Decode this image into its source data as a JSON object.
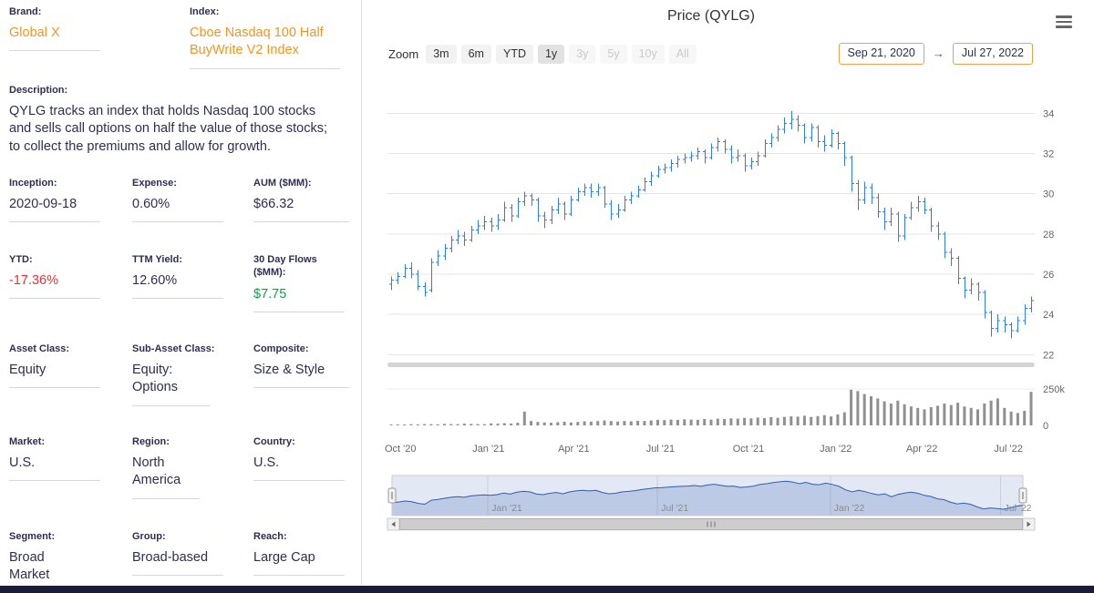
{
  "colors": {
    "accent-orange": "#f7941d",
    "negative-red": "#f3302f",
    "positive-green": "#0aa14e",
    "navy-text": "#2e2e52",
    "bar-blue": "#2f7ed8",
    "volume-gray": "#909090",
    "nav-line-blue": "#335cad",
    "footer-navy": "#1b1b3a"
  },
  "profile": {
    "fields": {
      "brand": {
        "label": "Brand:",
        "value": "Global X"
      },
      "index": {
        "label": "Index:",
        "value": "Cboe Nasdaq 100 Half BuyWrite V2 Index"
      },
      "description": {
        "label": "Description:",
        "value": "QYLG tracks an index that holds Nasdaq 100 stocks and sells call options on half the value of those stocks; to collect the premiums and allow for growth."
      },
      "inception": {
        "label": "Inception:",
        "value": "2020-09-18"
      },
      "expense": {
        "label": "Expense:",
        "value": "0.60%"
      },
      "aum": {
        "label": "AUM ($MM):",
        "value": "$66.32"
      },
      "ytd": {
        "label": "YTD:",
        "value": "-17.36%"
      },
      "ttm_yield": {
        "label": "TTM Yield:",
        "value": "12.60%"
      },
      "flows30d": {
        "label": "30 Day Flows ($MM):",
        "value": "$7.75"
      },
      "asset_class": {
        "label": "Asset Class:",
        "value": "Equity"
      },
      "sub_asset_class": {
        "label": "Sub-Asset Class:",
        "value": "Equity: Options"
      },
      "composite": {
        "label": "Composite:",
        "value": "Size & Style"
      },
      "market": {
        "label": "Market:",
        "value": "U.S."
      },
      "region": {
        "label": "Region:",
        "value": "North America"
      },
      "country": {
        "label": "Country:",
        "value": "U.S."
      },
      "segment": {
        "label": "Segment:",
        "value": "Broad Market"
      },
      "group": {
        "label": "Group:",
        "value": "Broad-based"
      },
      "reach": {
        "label": "Reach:",
        "value": "Large Cap"
      }
    }
  },
  "chart": {
    "title": "Price (QYLG)",
    "zoom_label": "Zoom",
    "zoom_buttons": [
      {
        "label": "3m",
        "state": "enabled"
      },
      {
        "label": "6m",
        "state": "enabled"
      },
      {
        "label": "YTD",
        "state": "enabled"
      },
      {
        "label": "1y",
        "state": "selected"
      },
      {
        "label": "3y",
        "state": "disabled"
      },
      {
        "label": "5y",
        "state": "disabled"
      },
      {
        "label": "10y",
        "state": "disabled"
      },
      {
        "label": "All",
        "state": "disabled"
      }
    ],
    "range": {
      "from": "Sep 21, 2020",
      "arrow": "→",
      "to": "Jul 27, 2022"
    }
  },
  "chart_data": {
    "type": "candlestick",
    "title": "Price (QYLG)",
    "interval": "weekly",
    "start_date": "2020-09-21",
    "end_date": "2022-07-27",
    "price_axis": {
      "min": 22,
      "max": 34,
      "side": "right"
    },
    "price_ticks": [
      22,
      24,
      26,
      28,
      30,
      32,
      34
    ],
    "volume_axis": {
      "max_k": 250,
      "side": "right"
    },
    "volume_ticks": [
      {
        "v": 0,
        "label": "0"
      },
      {
        "v": 250,
        "label": "250k"
      }
    ],
    "x_ticks": [
      {
        "label": "Oct '20",
        "i": 1.4
      },
      {
        "label": "Jan '21",
        "i": 14.6
      },
      {
        "label": "Apr '21",
        "i": 27.4
      },
      {
        "label": "Jul '21",
        "i": 40.4
      },
      {
        "label": "Oct '21",
        "i": 53.6
      },
      {
        "label": "Jan '22",
        "i": 66.7
      },
      {
        "label": "Apr '22",
        "i": 79.6
      },
      {
        "label": "Jul '22",
        "i": 92.6
      }
    ],
    "nav_ticks": [
      {
        "label": "Jan '21",
        "i": 14.6
      },
      {
        "label": "Jul '21",
        "i": 40.4
      },
      {
        "label": "Jan '22",
        "i": 66.7
      },
      {
        "label": "Jul '22",
        "i": 92.6
      }
    ],
    "ohlc": [
      [
        25.5,
        25.9,
        25.2,
        25.7
      ],
      [
        25.7,
        26.1,
        25.5,
        25.9
      ],
      [
        25.9,
        26.5,
        25.8,
        26.3
      ],
      [
        26.3,
        26.6,
        25.8,
        26.0
      ],
      [
        26.0,
        26.2,
        25.2,
        25.4
      ],
      [
        25.4,
        25.6,
        24.9,
        25.1
      ],
      [
        25.2,
        26.8,
        25.1,
        26.6
      ],
      [
        26.6,
        27.2,
        26.4,
        26.9
      ],
      [
        26.9,
        27.5,
        26.7,
        27.3
      ],
      [
        27.3,
        27.9,
        27.1,
        27.7
      ],
      [
        27.7,
        28.2,
        27.5,
        27.9
      ],
      [
        27.9,
        28.1,
        27.4,
        27.7
      ],
      [
        27.7,
        28.4,
        27.6,
        28.2
      ],
      [
        28.2,
        28.7,
        28.0,
        28.4
      ],
      [
        28.4,
        28.9,
        28.2,
        28.6
      ],
      [
        28.6,
        28.8,
        28.1,
        28.4
      ],
      [
        28.4,
        29.0,
        28.2,
        28.7
      ],
      [
        28.7,
        29.6,
        28.6,
        29.3
      ],
      [
        29.3,
        29.5,
        28.6,
        28.9
      ],
      [
        28.9,
        29.8,
        28.8,
        29.6
      ],
      [
        29.6,
        30.1,
        29.4,
        29.9
      ],
      [
        29.9,
        30.0,
        29.4,
        29.7
      ],
      [
        29.7,
        29.8,
        28.6,
        28.9
      ],
      [
        28.9,
        29.1,
        28.3,
        28.7
      ],
      [
        28.7,
        29.4,
        28.5,
        29.2
      ],
      [
        29.2,
        29.8,
        29.0,
        29.5
      ],
      [
        29.5,
        29.6,
        28.7,
        29.0
      ],
      [
        29.0,
        29.9,
        28.9,
        29.7
      ],
      [
        29.7,
        30.3,
        29.6,
        30.1
      ],
      [
        30.1,
        30.5,
        29.9,
        30.3
      ],
      [
        30.3,
        30.5,
        29.8,
        30.1
      ],
      [
        30.1,
        30.5,
        29.9,
        30.3
      ],
      [
        30.3,
        30.4,
        29.3,
        29.5
      ],
      [
        29.5,
        29.7,
        28.7,
        29.0
      ],
      [
        29.0,
        29.5,
        28.8,
        29.2
      ],
      [
        29.2,
        29.9,
        29.1,
        29.7
      ],
      [
        29.7,
        30.1,
        29.5,
        29.9
      ],
      [
        29.9,
        30.4,
        29.8,
        30.2
      ],
      [
        30.2,
        30.8,
        30.1,
        30.6
      ],
      [
        30.6,
        31.1,
        30.4,
        30.9
      ],
      [
        30.9,
        31.4,
        30.8,
        31.2
      ],
      [
        31.2,
        31.5,
        31.0,
        31.3
      ],
      [
        31.3,
        31.7,
        31.1,
        31.5
      ],
      [
        31.5,
        31.9,
        31.3,
        31.7
      ],
      [
        31.7,
        32.0,
        31.5,
        31.8
      ],
      [
        31.8,
        32.1,
        31.6,
        31.9
      ],
      [
        31.9,
        32.3,
        31.7,
        32.1
      ],
      [
        32.1,
        32.2,
        31.5,
        31.8
      ],
      [
        31.8,
        32.5,
        31.7,
        32.3
      ],
      [
        32.3,
        32.8,
        32.1,
        32.6
      ],
      [
        32.6,
        32.7,
        32.0,
        32.2
      ],
      [
        32.2,
        32.4,
        31.5,
        31.8
      ],
      [
        31.8,
        32.2,
        31.6,
        31.9
      ],
      [
        31.9,
        32.0,
        31.1,
        31.4
      ],
      [
        31.4,
        31.8,
        31.2,
        31.6
      ],
      [
        31.6,
        32.1,
        31.4,
        31.9
      ],
      [
        31.9,
        32.7,
        31.8,
        32.5
      ],
      [
        32.5,
        33.0,
        32.3,
        32.8
      ],
      [
        32.8,
        33.4,
        32.6,
        33.2
      ],
      [
        33.2,
        33.8,
        33.0,
        33.5
      ],
      [
        33.5,
        34.1,
        33.2,
        33.7
      ],
      [
        33.7,
        33.9,
        33.1,
        33.4
      ],
      [
        33.4,
        33.5,
        32.5,
        32.8
      ],
      [
        32.8,
        33.5,
        32.6,
        33.3
      ],
      [
        33.3,
        33.4,
        32.3,
        32.6
      ],
      [
        32.6,
        32.9,
        32.1,
        32.4
      ],
      [
        32.4,
        33.2,
        32.3,
        33.0
      ],
      [
        33.0,
        33.1,
        32.2,
        32.5
      ],
      [
        32.5,
        32.6,
        31.4,
        31.8
      ],
      [
        31.8,
        31.9,
        30.1,
        30.5
      ],
      [
        30.5,
        30.7,
        29.2,
        29.7
      ],
      [
        29.7,
        30.6,
        29.5,
        30.3
      ],
      [
        30.3,
        30.5,
        29.5,
        29.8
      ],
      [
        29.8,
        30.0,
        28.8,
        29.1
      ],
      [
        29.1,
        29.3,
        28.2,
        28.6
      ],
      [
        28.6,
        29.3,
        28.4,
        29.0
      ],
      [
        29.0,
        29.1,
        27.6,
        27.9
      ],
      [
        27.9,
        29.0,
        27.7,
        28.8
      ],
      [
        28.8,
        29.6,
        28.7,
        29.3
      ],
      [
        29.3,
        29.9,
        29.1,
        29.6
      ],
      [
        29.6,
        29.8,
        29.0,
        29.2
      ],
      [
        29.2,
        29.3,
        28.1,
        28.4
      ],
      [
        28.4,
        28.6,
        27.7,
        28.0
      ],
      [
        28.0,
        28.1,
        26.8,
        27.1
      ],
      [
        27.1,
        27.3,
        26.4,
        26.8
      ],
      [
        26.8,
        26.9,
        25.5,
        25.8
      ],
      [
        25.8,
        25.9,
        24.8,
        25.2
      ],
      [
        25.2,
        25.8,
        25.0,
        25.5
      ],
      [
        25.5,
        25.6,
        24.7,
        25.1
      ],
      [
        25.1,
        25.2,
        23.8,
        24.1
      ],
      [
        24.1,
        24.2,
        22.9,
        23.3
      ],
      [
        23.3,
        24.0,
        23.1,
        23.7
      ],
      [
        23.7,
        23.9,
        23.1,
        23.5
      ],
      [
        23.5,
        23.6,
        22.8,
        23.2
      ],
      [
        23.2,
        23.9,
        23.1,
        23.7
      ],
      [
        23.7,
        24.5,
        23.5,
        24.3
      ],
      [
        24.3,
        24.9,
        24.1,
        24.7
      ]
    ],
    "volume_k": [
      6,
      7,
      6,
      8,
      7,
      9,
      8,
      7,
      10,
      9,
      8,
      12,
      10,
      9,
      8,
      14,
      12,
      15,
      13,
      18,
      95,
      30,
      24,
      20,
      18,
      22,
      25,
      20,
      24,
      28,
      26,
      30,
      34,
      30,
      26,
      30,
      28,
      32,
      30,
      34,
      38,
      36,
      40,
      38,
      42,
      40,
      38,
      44,
      40,
      46,
      44,
      48,
      46,
      52,
      48,
      54,
      50,
      56,
      52,
      58,
      62,
      60,
      66,
      58,
      64,
      70,
      62,
      75,
      90,
      245,
      235,
      215,
      200,
      185,
      165,
      150,
      170,
      145,
      130,
      120,
      110,
      125,
      135,
      150,
      140,
      155,
      130,
      120,
      110,
      150,
      170,
      185,
      120,
      95,
      85,
      100,
      230
    ]
  }
}
